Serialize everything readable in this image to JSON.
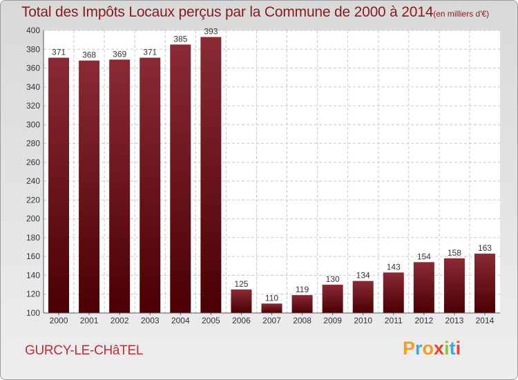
{
  "title": "Total des Impôts Locaux perçus par la Commune de 2000 à 2014",
  "unit": "(en milliers d'€)",
  "commune": "GURCY-LE-CHâTEL",
  "logo": {
    "letters": [
      "P",
      "r",
      "o",
      "x",
      "i",
      "t",
      "i"
    ]
  },
  "colors": {
    "title": "#8b1a1a",
    "bar_top": "#8a2a35",
    "bar_bottom": "#4a0003",
    "commune": "#b5313a"
  },
  "chart_data": {
    "type": "bar",
    "categories": [
      "2000",
      "2001",
      "2002",
      "2003",
      "2004",
      "2005",
      "2006",
      "2007",
      "2008",
      "2009",
      "2010",
      "2011",
      "2012",
      "2013",
      "2014"
    ],
    "values": [
      371,
      368,
      369,
      371,
      385,
      393,
      125,
      110,
      119,
      130,
      134,
      143,
      154,
      158,
      163
    ],
    "ylim": [
      100,
      400
    ],
    "yticks": [
      100,
      120,
      140,
      160,
      180,
      200,
      220,
      240,
      260,
      280,
      300,
      320,
      340,
      360,
      380,
      400
    ],
    "grid": true,
    "xlabel": "",
    "ylabel": ""
  }
}
